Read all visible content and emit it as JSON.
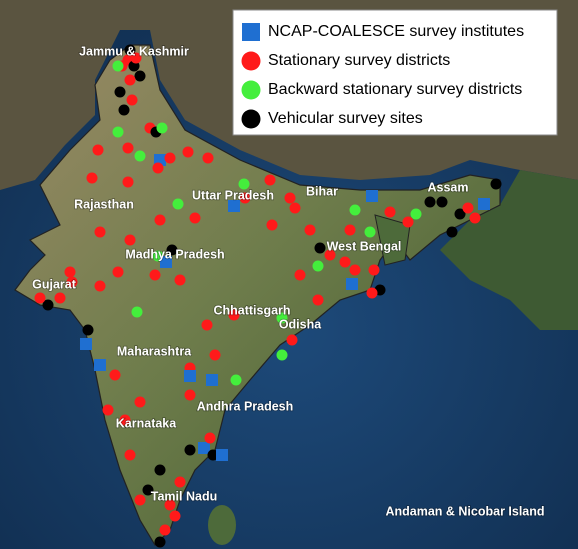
{
  "legend": [
    {
      "label": "NCAP-COALESCE survey institutes",
      "color": "#1f6fd1",
      "shape": "square"
    },
    {
      "label": "Stationary survey districts",
      "color": "#ff1a1a",
      "shape": "circle"
    },
    {
      "label": "Backward stationary survey districts",
      "color": "#44ee3c",
      "shape": "circle"
    },
    {
      "label": "Vehicular survey sites",
      "color": "#000000",
      "shape": "circle"
    }
  ],
  "regions": [
    "Jammu & Kashmir",
    "Rajasthan",
    "Uttar Pradesh",
    "Bihar",
    "West Bengal",
    "Assam",
    "Madhya Pradesh",
    "Gujarat",
    "Chhattisgarh",
    "Odisha",
    "Maharashtra",
    "Andhra Pradesh",
    "Karnataka",
    "Tamil Nadu",
    "Andaman & Nicobar Island"
  ]
}
